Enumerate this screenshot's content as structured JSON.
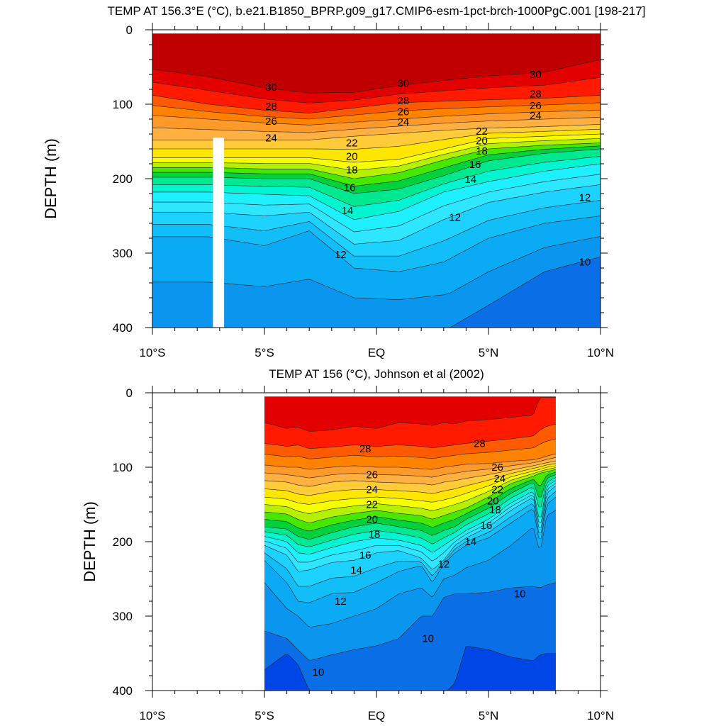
{
  "colors": {
    "fill_levels": [
      {
        "min": 30,
        "color": "#c00000"
      },
      {
        "min": 29,
        "color": "#e30000"
      },
      {
        "min": 28,
        "color": "#ff1a00"
      },
      {
        "min": 27,
        "color": "#ff5a00"
      },
      {
        "min": 26,
        "color": "#ff8200"
      },
      {
        "min": 25,
        "color": "#ff9a2a"
      },
      {
        "min": 24,
        "color": "#ffb040"
      },
      {
        "min": 23,
        "color": "#ffcb38"
      },
      {
        "min": 22,
        "color": "#ffe600"
      },
      {
        "min": 21,
        "color": "#f5ff00"
      },
      {
        "min": 20,
        "color": "#b4f000"
      },
      {
        "min": 19,
        "color": "#46e800"
      },
      {
        "min": 18,
        "color": "#00d23c"
      },
      {
        "min": 17,
        "color": "#00e890"
      },
      {
        "min": 16,
        "color": "#00f5d0"
      },
      {
        "min": 15,
        "color": "#1ef0ff"
      },
      {
        "min": 14,
        "color": "#2ee6ff"
      },
      {
        "min": 13,
        "color": "#1ed2ff"
      },
      {
        "min": 12,
        "color": "#12bef8"
      },
      {
        "min": 11,
        "color": "#0aaaf5"
      },
      {
        "min": 10,
        "color": "#0a96ef"
      },
      {
        "min": 9,
        "color": "#0a6ee6"
      },
      {
        "min": 8,
        "color": "#0046e6"
      },
      {
        "min": -99,
        "color": "#0a14d2"
      }
    ],
    "contour_line": "#222222"
  },
  "chart_data": [
    {
      "type": "contour",
      "title": "TEMP AT 156.3°E (°C), b.e21.B1850_BPRP.g09_g17.CMIP6-esm-1pct-brch-1000PgC.001 [198-217]",
      "xlabel": "",
      "ylabel": "DEPTH (m)",
      "x_range": [
        -10,
        10
      ],
      "y_range": [
        0,
        400
      ],
      "y_reversed": true,
      "data_lat_range": [
        -10,
        10
      ],
      "data_depth_top": 5,
      "x_ticks": [
        "10°S",
        "5°S",
        "EQ",
        "5°N",
        "10°N"
      ],
      "y_ticks": [
        "0",
        "100",
        "200",
        "300",
        "400"
      ],
      "missing_band": {
        "lat_range": [
          -7.3,
          -6.8
        ],
        "depth_range": [
          145,
          400
        ]
      },
      "contour_levels": {
        "min": 10,
        "max": 30,
        "step": 1
      },
      "latitudes": [
        -10,
        -7.5,
        -5,
        -3,
        -1,
        1,
        3,
        5,
        7.5,
        10
      ],
      "isotherm_depths": {
        "30": [
          53,
          63,
          78,
          85,
          84,
          75,
          68,
          62,
          57,
          40
        ],
        "28": [
          88,
          100,
          108,
          112,
          105,
          98,
          96,
          94,
          92,
          88
        ],
        "26": [
          115,
          120,
          125,
          128,
          124,
          120,
          116,
          113,
          110,
          108
        ],
        "24": [
          148,
          148,
          148,
          148,
          143,
          139,
          135,
          132,
          130,
          127
        ],
        "22": [
          172,
          172,
          172,
          172,
          178,
          174,
          160,
          146,
          143,
          140
        ],
        "20": [
          185,
          185,
          187,
          187,
          200,
          192,
          175,
          160,
          155,
          152
        ],
        "18": [
          198,
          198,
          200,
          200,
          220,
          214,
          196,
          176,
          166,
          160
        ],
        "16": [
          218,
          218,
          221,
          223,
          255,
          244,
          218,
          204,
          190,
          180
        ],
        "14": [
          245,
          245,
          250,
          245,
          288,
          283,
          255,
          232,
          218,
          208
        ],
        "12": [
          278,
          278,
          290,
          270,
          320,
          325,
          312,
          280,
          260,
          250
        ],
        "10": [
          405,
          405,
          405,
          405,
          405,
          405,
          405,
          370,
          325,
          305
        ]
      },
      "contour_labels": [
        {
          "value": "30",
          "lat": -4.7,
          "depth": 77
        },
        {
          "value": "28",
          "lat": -4.7,
          "depth": 103
        },
        {
          "value": "26",
          "lat": -4.7,
          "depth": 123
        },
        {
          "value": "24",
          "lat": -4.7,
          "depth": 145
        },
        {
          "value": "30",
          "lat": 1.2,
          "depth": 72
        },
        {
          "value": "28",
          "lat": 1.2,
          "depth": 95
        },
        {
          "value": "26",
          "lat": 1.2,
          "depth": 110
        },
        {
          "value": "24",
          "lat": 1.2,
          "depth": 124
        },
        {
          "value": "30",
          "lat": 7.1,
          "depth": 60
        },
        {
          "value": "28",
          "lat": 7.1,
          "depth": 86
        },
        {
          "value": "26",
          "lat": 7.1,
          "depth": 102
        },
        {
          "value": "24",
          "lat": 7.1,
          "depth": 115
        },
        {
          "value": "22",
          "lat": -1.1,
          "depth": 152
        },
        {
          "value": "20",
          "lat": -1.1,
          "depth": 170
        },
        {
          "value": "18",
          "lat": -1.1,
          "depth": 188
        },
        {
          "value": "16",
          "lat": -1.2,
          "depth": 212
        },
        {
          "value": "14",
          "lat": -1.3,
          "depth": 243
        },
        {
          "value": "12",
          "lat": -1.6,
          "depth": 302
        },
        {
          "value": "22",
          "lat": 4.7,
          "depth": 136
        },
        {
          "value": "20",
          "lat": 4.7,
          "depth": 149
        },
        {
          "value": "18",
          "lat": 4.7,
          "depth": 163
        },
        {
          "value": "16",
          "lat": 4.4,
          "depth": 181
        },
        {
          "value": "14",
          "lat": 4.2,
          "depth": 201
        },
        {
          "value": "12",
          "lat": 3.5,
          "depth": 252
        },
        {
          "value": "12",
          "lat": 9.3,
          "depth": 225
        },
        {
          "value": "10",
          "lat": 9.3,
          "depth": 312
        }
      ]
    },
    {
      "type": "contour",
      "title": "TEMP AT 156 (°C), Johnson et al (2002)",
      "xlabel": "",
      "ylabel": "DEPTH (m)",
      "x_range": [
        -10,
        10
      ],
      "y_range": [
        0,
        400
      ],
      "y_reversed": true,
      "data_lat_range": [
        -5,
        8
      ],
      "data_depth_top": 5,
      "x_ticks": [
        "10°S",
        "5°S",
        "EQ",
        "5°N",
        "10°N"
      ],
      "y_ticks": [
        "0",
        "100",
        "200",
        "300",
        "400"
      ],
      "contour_levels": {
        "min": 10,
        "max": 30,
        "step": 1
      },
      "latitudes": [
        -5,
        -4,
        -3.5,
        -3,
        -2,
        -1,
        0,
        1,
        2,
        2.5,
        3,
        3.5,
        4,
        5,
        6,
        7,
        7.3,
        7.6,
        8
      ],
      "isotherm_depths": {
        "29": [
          40,
          48,
          46,
          52,
          50,
          45,
          48,
          40,
          42,
          44,
          40,
          42,
          38,
          36,
          33,
          30,
          6,
          6,
          6
        ],
        "28": [
          68,
          72,
          70,
          75,
          73,
          70,
          72,
          70,
          72,
          74,
          72,
          70,
          68,
          65,
          62,
          58,
          50,
          45,
          42
        ],
        "26": [
          97,
          100,
          100,
          103,
          100,
          98,
          100,
          100,
          102,
          103,
          100,
          98,
          96,
          95,
          92,
          90,
          88,
          85,
          82
        ],
        "24": [
          118,
          120,
          124,
          126,
          120,
          118,
          120,
          121,
          122,
          124,
          120,
          118,
          115,
          110,
          104,
          98,
          96,
          94,
          92
        ],
        "22": [
          140,
          143,
          148,
          150,
          145,
          142,
          140,
          142,
          145,
          147,
          144,
          140,
          135,
          125,
          113,
          105,
          103,
          100,
          98
        ],
        "20": [
          160,
          163,
          170,
          175,
          167,
          162,
          158,
          162,
          165,
          170,
          165,
          160,
          155,
          140,
          122,
          112,
          108,
          106,
          103
        ],
        "18": [
          180,
          183,
          193,
          197,
          188,
          180,
          175,
          180,
          185,
          192,
          185,
          180,
          170,
          155,
          135,
          120,
          145,
          115,
          110
        ],
        "16": [
          193,
          200,
          215,
          217,
          208,
          200,
          195,
          198,
          205,
          215,
          205,
          195,
          185,
          170,
          148,
          132,
          175,
          125,
          118
        ],
        "14": [
          205,
          218,
          240,
          238,
          228,
          225,
          215,
          212,
          222,
          238,
          225,
          205,
          195,
          180,
          158,
          140,
          190,
          135,
          125
        ],
        "12": [
          225,
          255,
          280,
          282,
          270,
          268,
          255,
          240,
          232,
          255,
          230,
          215,
          205,
          195,
          175,
          155,
          205,
          150,
          140
        ],
        "11": [
          255,
          290,
          300,
          315,
          310,
          300,
          290,
          270,
          262,
          275,
          250,
          245,
          235,
          225,
          205,
          180,
          215,
          165,
          158
        ],
        "10": [
          320,
          330,
          345,
          360,
          352,
          345,
          340,
          330,
          300,
          300,
          275,
          270,
          270,
          268,
          262,
          260,
          262,
          258,
          255
        ],
        "9": [
          372,
          350,
          365,
          400,
          405,
          405,
          405,
          405,
          405,
          405,
          405,
          390,
          340,
          345,
          355,
          360,
          352,
          350,
          350
        ]
      },
      "contour_labels": [
        {
          "value": "28",
          "lat": -0.5,
          "depth": 75
        },
        {
          "value": "28",
          "lat": 4.6,
          "depth": 68
        },
        {
          "value": "26",
          "lat": -0.2,
          "depth": 110
        },
        {
          "value": "24",
          "lat": -0.2,
          "depth": 130
        },
        {
          "value": "22",
          "lat": -0.2,
          "depth": 150
        },
        {
          "value": "20",
          "lat": -0.2,
          "depth": 170
        },
        {
          "value": "18",
          "lat": -0.1,
          "depth": 190
        },
        {
          "value": "16",
          "lat": -0.5,
          "depth": 218
        },
        {
          "value": "14",
          "lat": -0.9,
          "depth": 238
        },
        {
          "value": "12",
          "lat": -1.6,
          "depth": 280
        },
        {
          "value": "12",
          "lat": 3.0,
          "depth": 230
        },
        {
          "value": "10",
          "lat": 2.3,
          "depth": 330
        },
        {
          "value": "10",
          "lat": -2.6,
          "depth": 375
        },
        {
          "value": "26",
          "lat": 5.4,
          "depth": 100
        },
        {
          "value": "24",
          "lat": 5.5,
          "depth": 115
        },
        {
          "value": "22",
          "lat": 5.4,
          "depth": 130
        },
        {
          "value": "20",
          "lat": 5.2,
          "depth": 145
        },
        {
          "value": "18",
          "lat": 5.3,
          "depth": 157
        },
        {
          "value": "16",
          "lat": 4.9,
          "depth": 178
        },
        {
          "value": "14",
          "lat": 4.2,
          "depth": 200
        },
        {
          "value": "10",
          "lat": 6.4,
          "depth": 270
        }
      ]
    }
  ]
}
